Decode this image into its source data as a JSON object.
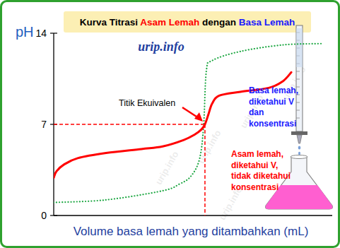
{
  "chart_data": {
    "type": "line",
    "title": "Kurva Titrasi Asam Lemah dengan Basa Lemah",
    "logo": "urip.info",
    "watermark": "urip.info",
    "x_label": "Volume basa lemah yang ditambahkan (mL)",
    "y_label": "pH",
    "xlim": [
      0,
      100
    ],
    "ylim": [
      0,
      14
    ],
    "yticks": [
      0,
      7,
      14
    ],
    "tick_labels": "y",
    "grid": false,
    "series": [
      {
        "color": "#ff0000",
        "line_style": "solid",
        "x": [
          0,
          1,
          3.6,
          8.6,
          18.8,
          31.5,
          39.1,
          46.7,
          50.5,
          53,
          54.3,
          55.6,
          56.9,
          59.4,
          67,
          77.2,
          82.2,
          85.3
        ],
        "values": [
          2.9,
          3.4,
          3.9,
          4.4,
          4.8,
          5.1,
          5.3,
          5.8,
          6.2,
          6.6,
          7.0,
          7.8,
          8.6,
          9.2,
          9.5,
          9.8,
          10.3,
          11.0
        ]
      },
      {
        "color": "#1fa844",
        "line_style": "dotted",
        "x": [
          0,
          18.8,
          39.1,
          45,
          49.2,
          52.3,
          53.8,
          54.8,
          56.9,
          67,
          82.2,
          96.2
        ],
        "values": [
          1.0,
          1.2,
          1.9,
          2.4,
          3.0,
          4.3,
          6.8,
          11.1,
          11.9,
          12.6,
          13.1,
          13.2
        ]
      }
    ],
    "annotations": [
      {
        "text": "Titik Ekuivalen",
        "x": 54.3,
        "y": 7,
        "color": "#ff0000"
      },
      {
        "lines": [
          "Basa lemah,",
          "diketahui V",
          "dan",
          "konsentrasi"
        ],
        "color": "#1a1aff"
      },
      {
        "lines": [
          "Asam lemah,",
          "diketahui V,",
          "tidak diketahui",
          "konsentrasi"
        ],
        "color": "#ff0000"
      }
    ]
  }
}
